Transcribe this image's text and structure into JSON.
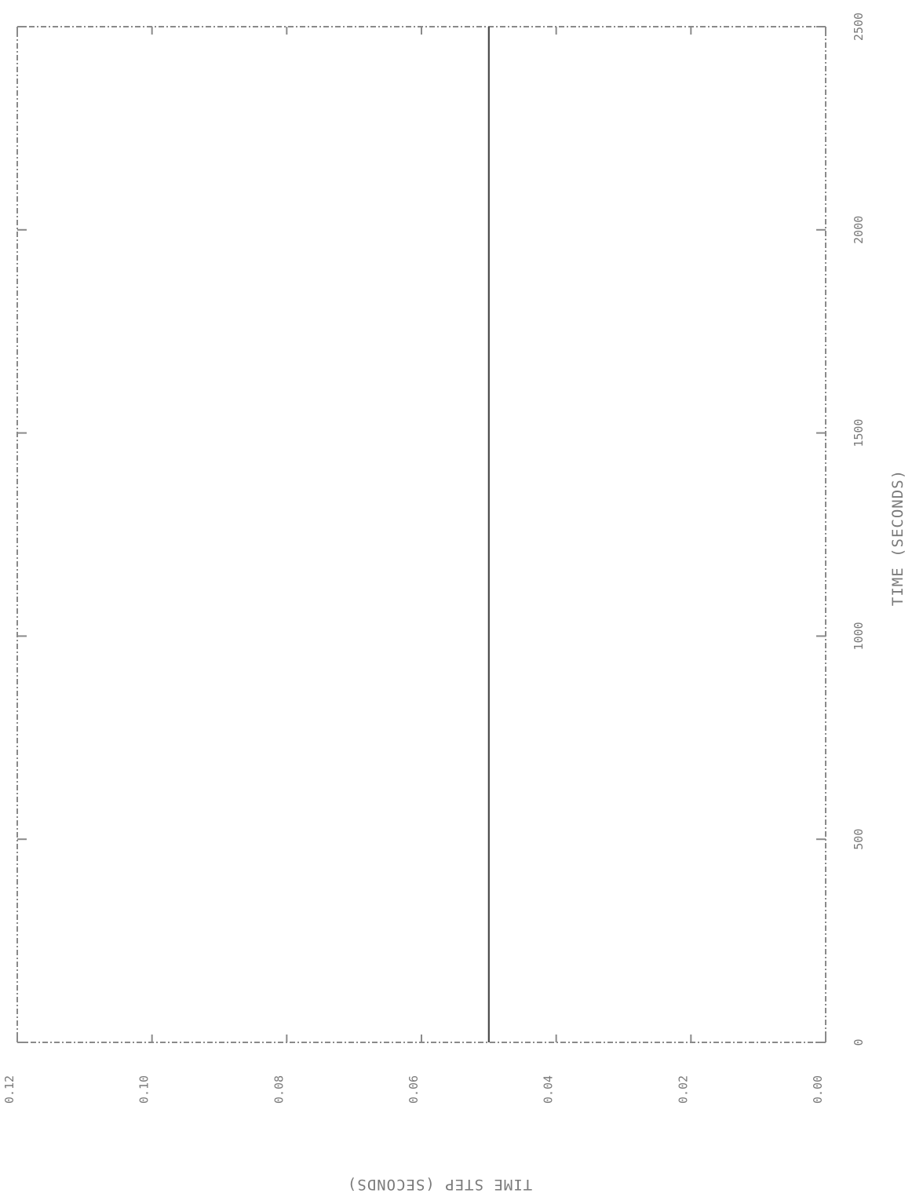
{
  "chart_data": {
    "type": "line",
    "orientation": "rotated-90-clockwise",
    "title": "",
    "xlabel": "TIME (SECONDS)",
    "ylabel": "TIME STEP (SECONDS)",
    "xlim": [
      0,
      2500
    ],
    "ylim": [
      0.0,
      0.12
    ],
    "x_ticks": [
      "0",
      "500",
      "1000",
      "1500",
      "2000",
      "2500"
    ],
    "y_ticks": [
      "0.00",
      "0.02",
      "0.04",
      "0.06",
      "0.08",
      "0.10",
      "0.12"
    ],
    "grid": false,
    "legend": "none",
    "series": [
      {
        "x": [
          0,
          2500
        ],
        "y": [
          0.05,
          0.05
        ]
      }
    ]
  }
}
